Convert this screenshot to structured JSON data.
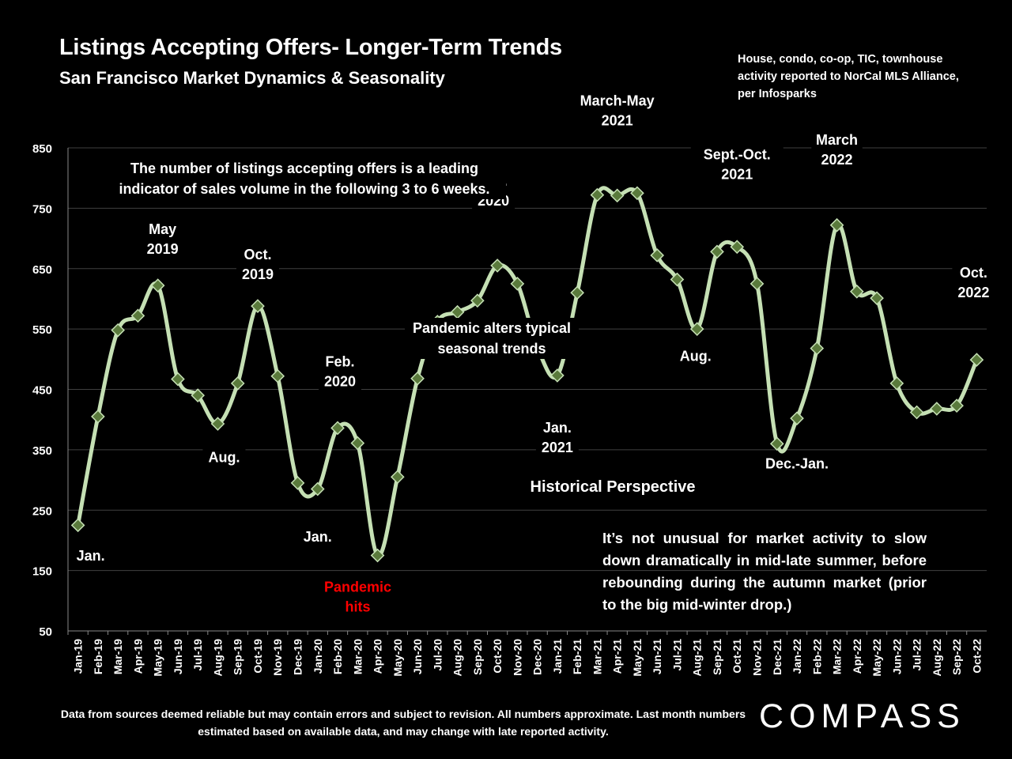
{
  "header": {
    "title": "Listings Accepting Offers- Longer-Term Trends",
    "subtitle": "San Francisco Market Dynamics & Seasonality",
    "source_note": "House, condo, co-op, TIC, townhouse activity reported to NorCal MLS Alliance, per Infosparks"
  },
  "notes": {
    "leading_indicator": "The number of listings accepting offers is a leading indicator of sales volume in the following 3 to 6 weeks.",
    "pandemic_alters": "Pandemic alters typical seasonal trends",
    "historical_perspective": "Historical Perspective",
    "perspective_body": "It’s not unusual for market activity to slow down dramatically in mid-late summer, before rebounding during the autumn market (prior to the big mid-winter drop.)"
  },
  "footer": {
    "disclaimer": "Data from sources deemed reliable but may contain errors and subject to revision. All numbers approximate. Last month numbers estimated based on available data, and may change with late reported activity.",
    "logo": "COMPASS"
  },
  "colors": {
    "background": "#000000",
    "line": "#c5e0b4",
    "marker": "#5a7a3c",
    "text": "#ffffff",
    "highlight": "#ff0000",
    "grid": "#404040"
  },
  "chart_data": {
    "type": "line",
    "ylim": [
      50,
      850
    ],
    "yticks": [
      50,
      150,
      250,
      350,
      450,
      550,
      650,
      750,
      850
    ],
    "grid": true,
    "categories": [
      "Jan-19",
      "Feb-19",
      "Mar-19",
      "Apr-19",
      "May-19",
      "Jun-19",
      "Jul-19",
      "Aug-19",
      "Sep-19",
      "Oct-19",
      "Nov-19",
      "Dec-19",
      "Jan-20",
      "Feb-20",
      "Mar-20",
      "Apr-20",
      "May-20",
      "Jun-20",
      "Jul-20",
      "Aug-20",
      "Sep-20",
      "Oct-20",
      "Nov-20",
      "Dec-20",
      "Jan-21",
      "Feb-21",
      "Mar-21",
      "Apr-21",
      "May-21",
      "Jun-21",
      "Jul-21",
      "Aug-21",
      "Sep-21",
      "Oct-21",
      "Nov-21",
      "Dec-21",
      "Jan-22",
      "Feb-22",
      "Mar-22",
      "Apr-22",
      "May-22",
      "Jun-22",
      "Jul-22",
      "Aug-22",
      "Sep-22",
      "Oct-22"
    ],
    "values": [
      225,
      405,
      548,
      572,
      622,
      467,
      440,
      393,
      460,
      588,
      472,
      295,
      285,
      386,
      361,
      175,
      305,
      468,
      562,
      578,
      597,
      655,
      625,
      520,
      473,
      610,
      772,
      771,
      775,
      672,
      632,
      550,
      678,
      686,
      625,
      360,
      402,
      518,
      722,
      612,
      601,
      460,
      412,
      418,
      423,
      499
    ],
    "annotations": [
      {
        "text": "Jan.",
        "index": 0,
        "color": "#ffffff"
      },
      {
        "text": "May 2019",
        "index": 4,
        "color": "#ffffff"
      },
      {
        "text": "Aug.",
        "index": 7,
        "color": "#ffffff"
      },
      {
        "text": "Oct. 2019",
        "index": 9,
        "color": "#ffffff"
      },
      {
        "text": "Jan.",
        "index": 12,
        "color": "#ffffff"
      },
      {
        "text": "Feb. 2020",
        "index": 13,
        "color": "#ffffff"
      },
      {
        "text": "Pandemic hits",
        "index": 15,
        "color": "#ff0000"
      },
      {
        "text": "Oct. 2020",
        "index": 21,
        "color": "#ffffff"
      },
      {
        "text": "Jan. 2021",
        "index": 24,
        "color": "#ffffff"
      },
      {
        "text": "March-May 2021",
        "index": 27,
        "color": "#ffffff"
      },
      {
        "text": "Aug.",
        "index": 31,
        "color": "#ffffff"
      },
      {
        "text": "Sept.-Oct. 2021",
        "index": 33,
        "color": "#ffffff"
      },
      {
        "text": "Dec.-Jan.",
        "index": 36,
        "color": "#ffffff"
      },
      {
        "text": "March 2022",
        "index": 38,
        "color": "#ffffff"
      },
      {
        "text": "Oct. 2022",
        "index": 45,
        "color": "#ffffff"
      }
    ]
  }
}
